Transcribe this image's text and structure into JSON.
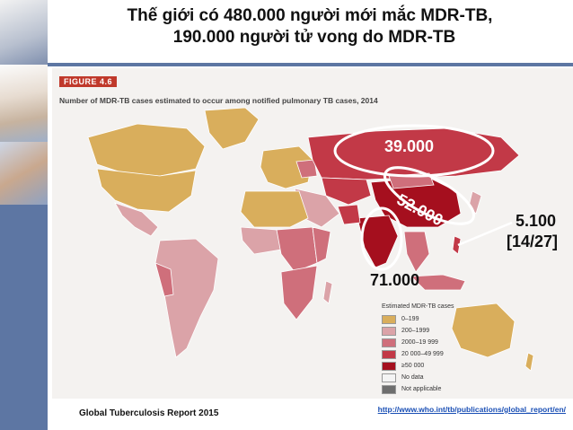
{
  "title": {
    "line1": "Thế giới có 480.000 người mới mắc MDR-TB,",
    "line2": "190.000 người tử vong do MDR-TB"
  },
  "figure": {
    "label": "FIGURE 4.6",
    "caption": "Number of MDR-TB cases estimated to occur among notified pulmonary TB cases, 2014"
  },
  "callouts": {
    "russia": "39.000",
    "china": "52.000",
    "philippines": "5.100",
    "rank": "[14/27]",
    "india": "71.000"
  },
  "legend": {
    "title": "Estimated MDR-TB cases",
    "items": [
      {
        "label": "0–199",
        "color": "#d9ae5c"
      },
      {
        "label": "200–1999",
        "color": "#dba3a8"
      },
      {
        "label": "2000–19 999",
        "color": "#cf6f7b"
      },
      {
        "label": "20 000–49 999",
        "color": "#c23947"
      },
      {
        "label": "≥50 000",
        "color": "#a50f1e"
      },
      {
        "label": "No data",
        "color": "#f4f4f4"
      },
      {
        "label": "Not applicable",
        "color": "#6e6e6e"
      }
    ]
  },
  "footer": {
    "source": "Global Tuberculosis Report 2015",
    "url": "http://www.who.int/tb/publications/global_report/en/"
  }
}
